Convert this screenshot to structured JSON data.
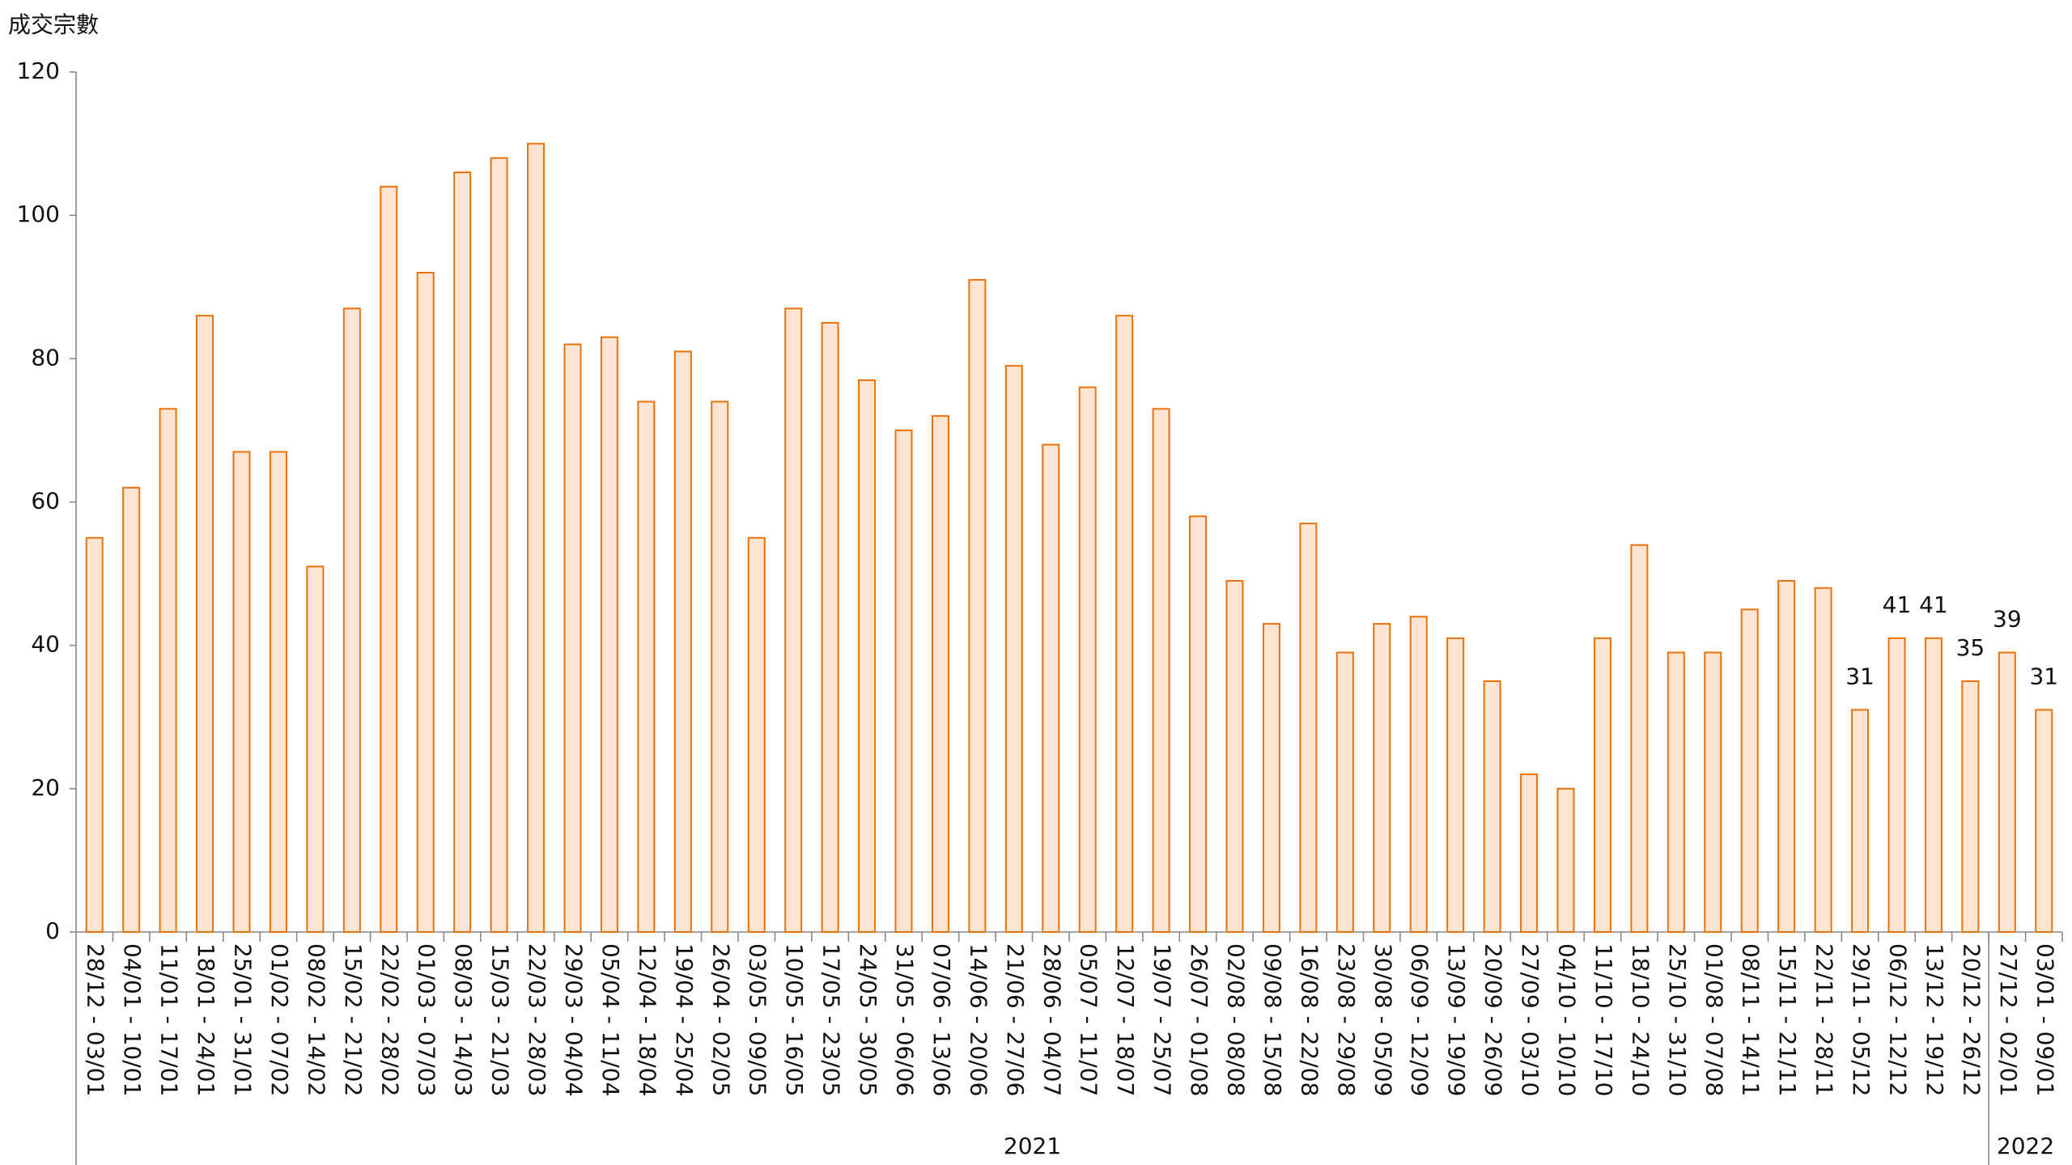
{
  "chart_data": {
    "type": "bar",
    "y_axis_title": "成交宗數",
    "categories": [
      "28/12 - 03/01",
      "04/01 - 10/01",
      "11/01 - 17/01",
      "18/01 - 24/01",
      "25/01 - 31/01",
      "01/02 - 07/02",
      "08/02 - 14/02",
      "15/02 - 21/02",
      "22/02 - 28/02",
      "01/03 - 07/03",
      "08/03 - 14/03",
      "15/03 - 21/03",
      "22/03 - 28/03",
      "29/03 - 04/04",
      "05/04 - 11/04",
      "12/04 - 18/04",
      "19/04 - 25/04",
      "26/04 - 02/05",
      "03/05 - 09/05",
      "10/05 - 16/05",
      "17/05 - 23/05",
      "24/05 - 30/05",
      "31/05 - 06/06",
      "07/06 - 13/06",
      "14/06 - 20/06",
      "21/06 - 27/06",
      "28/06 - 04/07",
      "05/07 - 11/07",
      "12/07 - 18/07",
      "19/07 - 25/07",
      "26/07 - 01/08",
      "02/08 - 08/08",
      "09/08 - 15/08",
      "16/08 - 22/08",
      "23/08 - 29/08",
      "30/08 - 05/09",
      "06/09 - 12/09",
      "13/09 - 19/09",
      "20/09 - 26/09",
      "27/09 - 03/10",
      "04/10 - 10/10",
      "11/10 - 17/10",
      "18/10 - 24/10",
      "25/10 - 31/10",
      "01/08 - 07/08",
      "08/11 - 14/11",
      "15/11 - 21/11",
      "22/11 - 28/11",
      "29/11 - 05/12",
      "06/12 - 12/12",
      "13/12 - 19/12",
      "20/12 - 26/12",
      "27/12 - 02/01",
      "03/01 - 09/01"
    ],
    "values": [
      55,
      62,
      73,
      86,
      67,
      67,
      51,
      87,
      104,
      92,
      106,
      108,
      110,
      82,
      83,
      74,
      81,
      74,
      55,
      87,
      85,
      77,
      70,
      72,
      91,
      79,
      68,
      76,
      86,
      73,
      58,
      49,
      43,
      57,
      39,
      43,
      44,
      41,
      35,
      22,
      20,
      41,
      54,
      39,
      39,
      45,
      49,
      48,
      31,
      41,
      41,
      35,
      39,
      31
    ],
    "value_labels": [
      null,
      null,
      null,
      null,
      null,
      null,
      null,
      null,
      null,
      null,
      null,
      null,
      null,
      null,
      null,
      null,
      null,
      null,
      null,
      null,
      null,
      null,
      null,
      null,
      null,
      null,
      null,
      null,
      null,
      null,
      null,
      null,
      null,
      null,
      null,
      null,
      null,
      null,
      null,
      null,
      null,
      null,
      null,
      null,
      null,
      null,
      null,
      null,
      "31",
      "41",
      "41",
      "35",
      "39",
      "31"
    ],
    "groups": [
      {
        "label": "2021",
        "count": 52
      },
      {
        "label": "2022",
        "count": 2
      }
    ],
    "color": "#fde5d1",
    "edge_color": "#e8720c",
    "ylim": [
      0,
      120
    ],
    "yticks": [
      0,
      20,
      40,
      60,
      80,
      100,
      120
    ],
    "grid": false
  }
}
